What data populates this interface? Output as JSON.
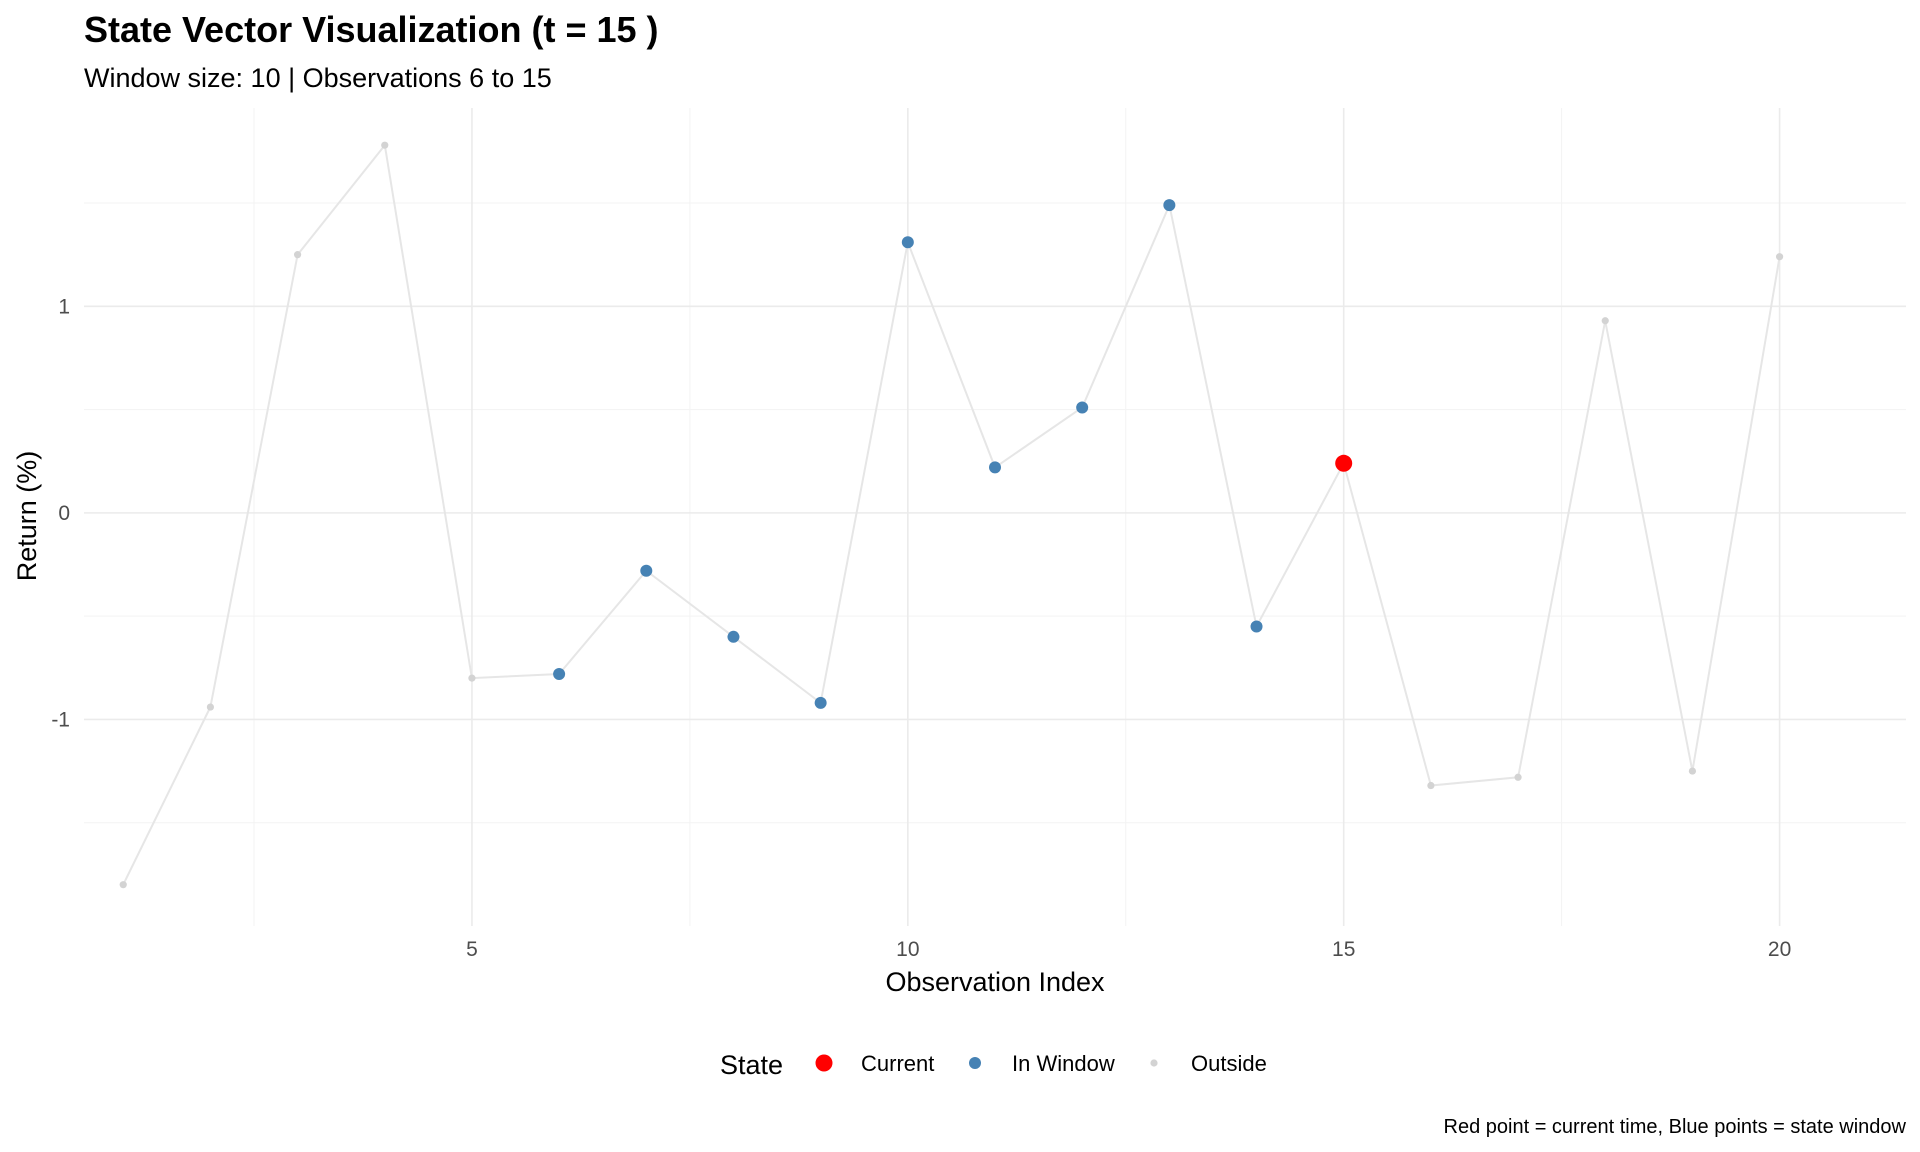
{
  "chart_data": {
    "type": "scatter",
    "title": "State Vector Visualization (t = 15 )",
    "subtitle": "Window size: 10 | Observations 6 to 15",
    "xlabel": "Observation Index",
    "ylabel": "Return (%)",
    "caption": "Red point = current time, Blue points = state window",
    "xlim": [
      0.55,
      21.45
    ],
    "ylim": [
      -2.0,
      1.96
    ],
    "x_ticks": [
      5,
      10,
      15,
      20
    ],
    "y_ticks": [
      -1,
      0,
      1
    ],
    "x_tick_labels": [
      "5",
      "10",
      "15",
      "20"
    ],
    "y_tick_labels": [
      "-1",
      "0",
      "1"
    ],
    "grid": true,
    "legend": {
      "title": "State",
      "position": "bottom",
      "entries": [
        {
          "label": "Current",
          "color": "#ff0000"
        },
        {
          "label": "In Window",
          "color": "#4682b4"
        },
        {
          "label": "Outside",
          "color": "#d3d3d3"
        }
      ]
    },
    "line_color": "#e6e6e6",
    "points": [
      {
        "x": 1,
        "y": -1.8,
        "state": "Outside"
      },
      {
        "x": 2,
        "y": -0.94,
        "state": "Outside"
      },
      {
        "x": 3,
        "y": 1.25,
        "state": "Outside"
      },
      {
        "x": 4,
        "y": 1.78,
        "state": "Outside"
      },
      {
        "x": 5,
        "y": -0.8,
        "state": "Outside"
      },
      {
        "x": 6,
        "y": -0.78,
        "state": "In Window"
      },
      {
        "x": 7,
        "y": -0.28,
        "state": "In Window"
      },
      {
        "x": 8,
        "y": -0.6,
        "state": "In Window"
      },
      {
        "x": 9,
        "y": -0.92,
        "state": "In Window"
      },
      {
        "x": 10,
        "y": 1.31,
        "state": "In Window"
      },
      {
        "x": 11,
        "y": 0.22,
        "state": "In Window"
      },
      {
        "x": 12,
        "y": 0.51,
        "state": "In Window"
      },
      {
        "x": 13,
        "y": 1.49,
        "state": "In Window"
      },
      {
        "x": 14,
        "y": -0.55,
        "state": "In Window"
      },
      {
        "x": 15,
        "y": 0.24,
        "state": "Current"
      },
      {
        "x": 16,
        "y": -1.32,
        "state": "Outside"
      },
      {
        "x": 17,
        "y": -1.28,
        "state": "Outside"
      },
      {
        "x": 18,
        "y": 0.93,
        "state": "Outside"
      },
      {
        "x": 19,
        "y": -1.25,
        "state": "Outside"
      },
      {
        "x": 20,
        "y": 1.24,
        "state": "Outside"
      }
    ]
  }
}
